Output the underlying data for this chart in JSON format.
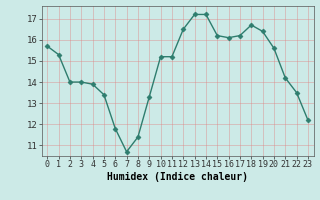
{
  "x": [
    0,
    1,
    2,
    3,
    4,
    5,
    6,
    7,
    8,
    9,
    10,
    11,
    12,
    13,
    14,
    15,
    16,
    17,
    18,
    19,
    20,
    21,
    22,
    23
  ],
  "y": [
    15.7,
    15.3,
    14.0,
    14.0,
    13.9,
    13.4,
    11.8,
    10.7,
    11.4,
    13.3,
    15.2,
    15.2,
    16.5,
    17.2,
    17.2,
    16.2,
    16.1,
    16.2,
    16.7,
    16.4,
    15.6,
    14.2,
    13.5,
    12.2
  ],
  "line_color": "#2e7d6e",
  "marker": "D",
  "marker_size": 2.5,
  "bg_color": "#cceae7",
  "grid_color": "#e08080",
  "xlabel": "Humidex (Indice chaleur)",
  "ylim": [
    10.5,
    17.6
  ],
  "yticks": [
    11,
    12,
    13,
    14,
    15,
    16,
    17
  ],
  "xlabel_fontsize": 7,
  "tick_fontsize": 6.5,
  "line_width": 1.0
}
